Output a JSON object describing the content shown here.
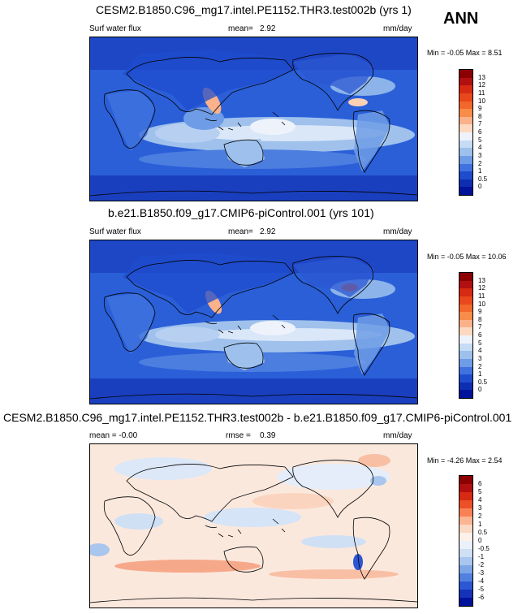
{
  "season": "ANN",
  "panels": [
    {
      "title": "CESM2.B1850.C96_mg17.intel.PE1152.THR3.test002b (yrs 1)",
      "left_label": "Surf water flux",
      "mid_label": "mean=",
      "mid_value": "2.92",
      "units": "mm/day",
      "minmax_label": "Min = -0.05 Max = 8.51",
      "kind": "abs"
    },
    {
      "title": "b.e21.B1850.f09_g17.CMIP6-piControl.001 (yrs 101)",
      "left_label": "Surf water flux",
      "mid_label": "mean=",
      "mid_value": "2.92",
      "units": "mm/day",
      "minmax_label": "Min = -0.05 Max = 10.06",
      "kind": "abs"
    },
    {
      "title": "CESM2.B1850.C96_mg17.intel.PE1152.THR3.test002b - b.e21.B1850.f09_g17.CMIP6-piControl.001",
      "left_label": "mean =  -0.00",
      "mid_label": "rmse =",
      "mid_value": "0.39",
      "units": "mm/day",
      "minmax_label": "Min = -4.26 Max = 2.54",
      "kind": "diff"
    }
  ],
  "colorbars": {
    "abs": {
      "labels": [
        "13",
        "12",
        "11",
        "10",
        "9",
        "8",
        "7",
        "6",
        "5",
        "4",
        "3",
        "2",
        "1",
        "0.5",
        "0"
      ],
      "colors": [
        "#8b0000",
        "#b01010",
        "#d62a12",
        "#e8481c",
        "#f2672c",
        "#f88c4a",
        "#fbb28a",
        "#fcd9c0",
        "#eef3fb",
        "#c6dbf4",
        "#9dc0ec",
        "#6f9ce6",
        "#3f72df",
        "#1f4ccd",
        "#0e2eb2",
        "#00129a"
      ]
    },
    "diff": {
      "labels": [
        "6",
        "5",
        "4",
        "3",
        "2",
        "1",
        "0.5",
        "0",
        "-0.5",
        "-1",
        "-2",
        "-3",
        "-4",
        "-5",
        "-6"
      ],
      "colors": [
        "#8b0000",
        "#b01010",
        "#d62a12",
        "#ec5028",
        "#f88256",
        "#fbb592",
        "#fbd9c5",
        "#fdf1ea",
        "#eaf1fb",
        "#cfe0f5",
        "#a9c6ee",
        "#7ea6e6",
        "#5180de",
        "#2c57d2",
        "#1433b8",
        "#00129a"
      ]
    }
  },
  "chart_data": [
    {
      "type": "heatmap",
      "title": "CESM2.B1850.C96_mg17.intel.PE1152.THR3.test002b (yrs 1)",
      "variable": "Surf water flux",
      "units": "mm/day",
      "mean": 2.92,
      "min": -0.05,
      "max": 8.51,
      "levels": [
        0,
        0.5,
        1,
        2,
        3,
        4,
        5,
        6,
        7,
        8,
        9,
        10,
        11,
        12,
        13
      ]
    },
    {
      "type": "heatmap",
      "title": "b.e21.B1850.f09_g17.CMIP6-piControl.001 (yrs 101)",
      "variable": "Surf water flux",
      "units": "mm/day",
      "mean": 2.92,
      "min": -0.05,
      "max": 10.06,
      "levels": [
        0,
        0.5,
        1,
        2,
        3,
        4,
        5,
        6,
        7,
        8,
        9,
        10,
        11,
        12,
        13
      ]
    },
    {
      "type": "heatmap",
      "title": "CESM2.B1850.C96_mg17.intel.PE1152.THR3.test002b - b.e21.B1850.f09_g17.CMIP6-piControl.001",
      "units": "mm/day",
      "mean": -0.0,
      "rmse": 0.39,
      "min": -4.26,
      "max": 2.54,
      "levels": [
        -6,
        -5,
        -4,
        -3,
        -2,
        -1,
        -0.5,
        0,
        0.5,
        1,
        2,
        3,
        4,
        5,
        6
      ]
    }
  ]
}
